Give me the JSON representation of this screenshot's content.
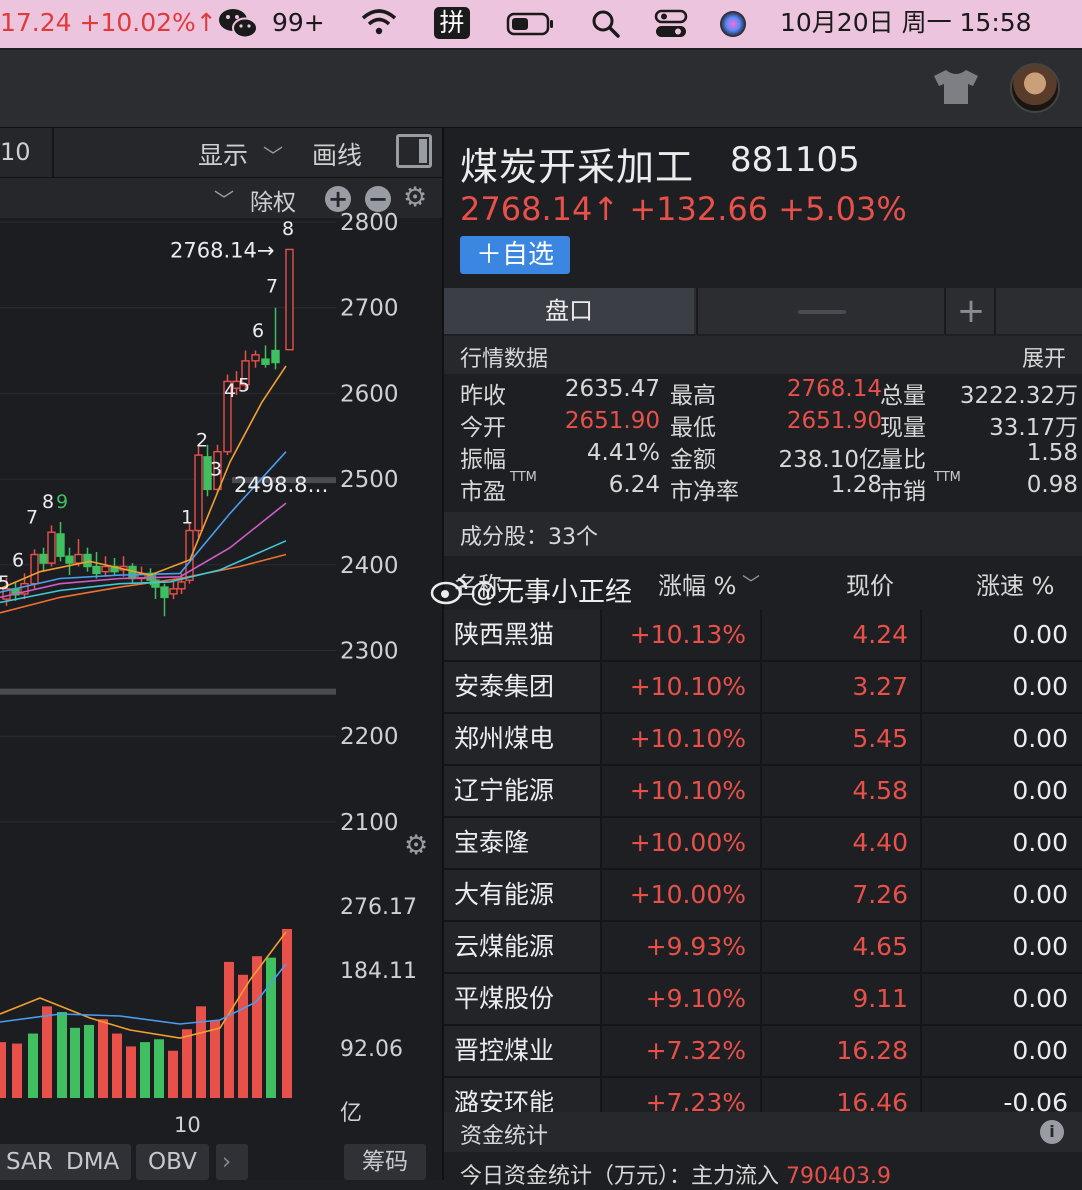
{
  "menubar": {
    "ticker": "17.24 +10.02%↑",
    "wechat_badge": "99+",
    "ime": "拼",
    "clock": "10月20日 周一  15:58"
  },
  "chart": {
    "toolbar": {
      "period": "10",
      "display_label": "显示",
      "draw_label": "画线",
      "adjust_label": "除权"
    },
    "price_axis": [
      "2800",
      "2700",
      "2600",
      "2500",
      "2400",
      "2300",
      "2200",
      "2100"
    ],
    "last_price_label": "2768.14→",
    "ma_label": "2498.8…",
    "candle_tags": [
      "5",
      "6",
      "7",
      "8",
      "9",
      "1",
      "2",
      "3",
      "4",
      "5",
      "6",
      "7",
      "8"
    ],
    "volume_axis": [
      "276.17",
      "184.11",
      "92.06",
      "亿"
    ],
    "volume_x_label": "10",
    "indicators": {
      "sar": "SAR",
      "dma": "DMA",
      "obv": "OBV",
      "more": "›",
      "chips": "筹码"
    },
    "colors": {
      "up": "#e8504a",
      "down": "#3fbf5f",
      "ma5": "#f0a030",
      "ma10": "#4a9ef0",
      "ma20": "#d05cc8",
      "ma30": "#3fc8d8",
      "ma60": "#f07030"
    }
  },
  "stock": {
    "name": "煤炭开采加工",
    "code": "881105",
    "price_line": "2768.14↑ +132.66 +5.03%",
    "fav_button": "＋自选"
  },
  "tabs": {
    "pankou": "盘口",
    "add": "+"
  },
  "quote": {
    "title": "行情数据",
    "expand": "展开",
    "rows": [
      {
        "l1": "昨收",
        "v1": "2635.47",
        "l2": "最高",
        "v2": "2768.14",
        "l3": "总量",
        "v3": "3222.32万"
      },
      {
        "l1": "今开",
        "v1": "2651.90",
        "l2": "最低",
        "v2": "2651.90",
        "l3": "现量",
        "v3": "33.17万"
      },
      {
        "l1": "振幅",
        "v1": "4.41%",
        "l2": "金额",
        "v2": "238.10亿",
        "l3": "量比",
        "v3": "1.58"
      },
      {
        "l1": "市盈",
        "v1": "6.24",
        "l2": "市净率",
        "v2": "1.28",
        "l3": "市销",
        "v3": "0.98"
      }
    ],
    "ttm": "TTM"
  },
  "components_label": "成分股：33个",
  "list": {
    "headers": {
      "name": "名称",
      "chg": "涨幅 %",
      "price": "现价",
      "speed": "涨速 %"
    },
    "watermark": "@无事小正经",
    "rows": [
      {
        "name": "陕西黑猫",
        "chg": "+10.13%",
        "price": "4.24",
        "speed": "0.00"
      },
      {
        "name": "安泰集团",
        "chg": "+10.10%",
        "price": "3.27",
        "speed": "0.00"
      },
      {
        "name": "郑州煤电",
        "chg": "+10.10%",
        "price": "5.45",
        "speed": "0.00"
      },
      {
        "name": "辽宁能源",
        "chg": "+10.10%",
        "price": "4.58",
        "speed": "0.00"
      },
      {
        "name": "宝泰隆",
        "chg": "+10.00%",
        "price": "4.40",
        "speed": "0.00"
      },
      {
        "name": "大有能源",
        "chg": "+10.00%",
        "price": "7.26",
        "speed": "0.00"
      },
      {
        "name": "云煤能源",
        "chg": "+9.93%",
        "price": "4.65",
        "speed": "0.00"
      },
      {
        "name": "平煤股份",
        "chg": "+9.10%",
        "price": "9.11",
        "speed": "0.00"
      },
      {
        "name": "晋控煤业",
        "chg": "+7.32%",
        "price": "16.28",
        "speed": "0.00"
      },
      {
        "name": "潞安环能",
        "chg": "+7.23%",
        "price": "16.46",
        "speed": "-0.06"
      }
    ]
  },
  "funds": {
    "title": "资金统计",
    "info_icon": "i",
    "line_label": "今日资金统计（万元）：主力流入",
    "line_value": "790403.9"
  }
}
